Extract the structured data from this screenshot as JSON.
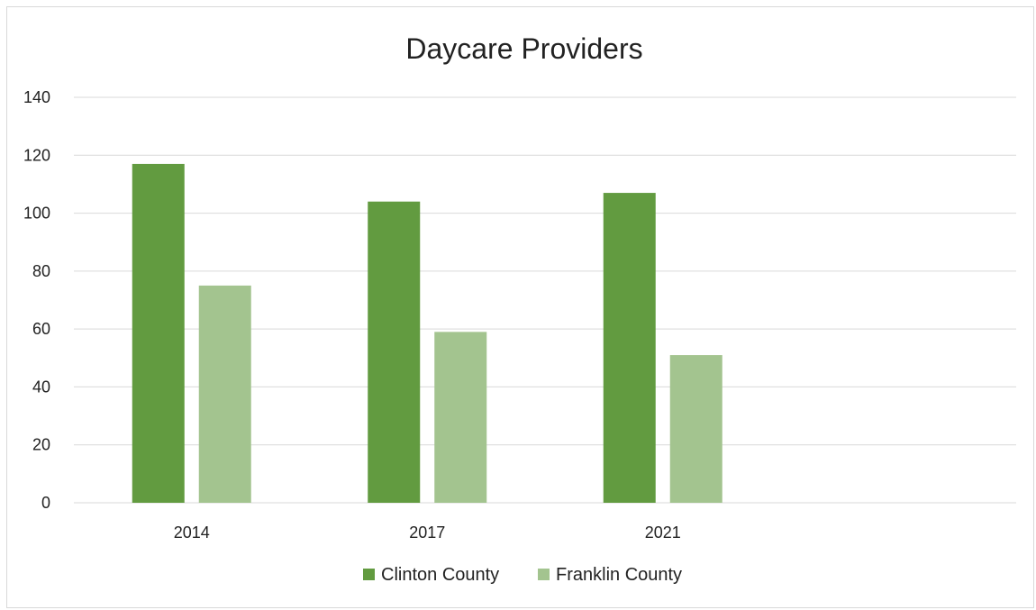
{
  "chart_data": {
    "type": "bar",
    "title": "Daycare Providers",
    "xlabel": "",
    "ylabel": "",
    "categories": [
      "2014",
      "2017",
      "2021"
    ],
    "ylim": [
      0,
      140
    ],
    "yticks": [
      0,
      20,
      40,
      60,
      80,
      100,
      120,
      140
    ],
    "grid": true,
    "legend_position": "bottom",
    "series": [
      {
        "name": "Clinton County",
        "color": "#629b40",
        "values": [
          117,
          104,
          107
        ]
      },
      {
        "name": "Franklin County",
        "color": "#a3c48f",
        "values": [
          75,
          59,
          51
        ]
      }
    ]
  }
}
